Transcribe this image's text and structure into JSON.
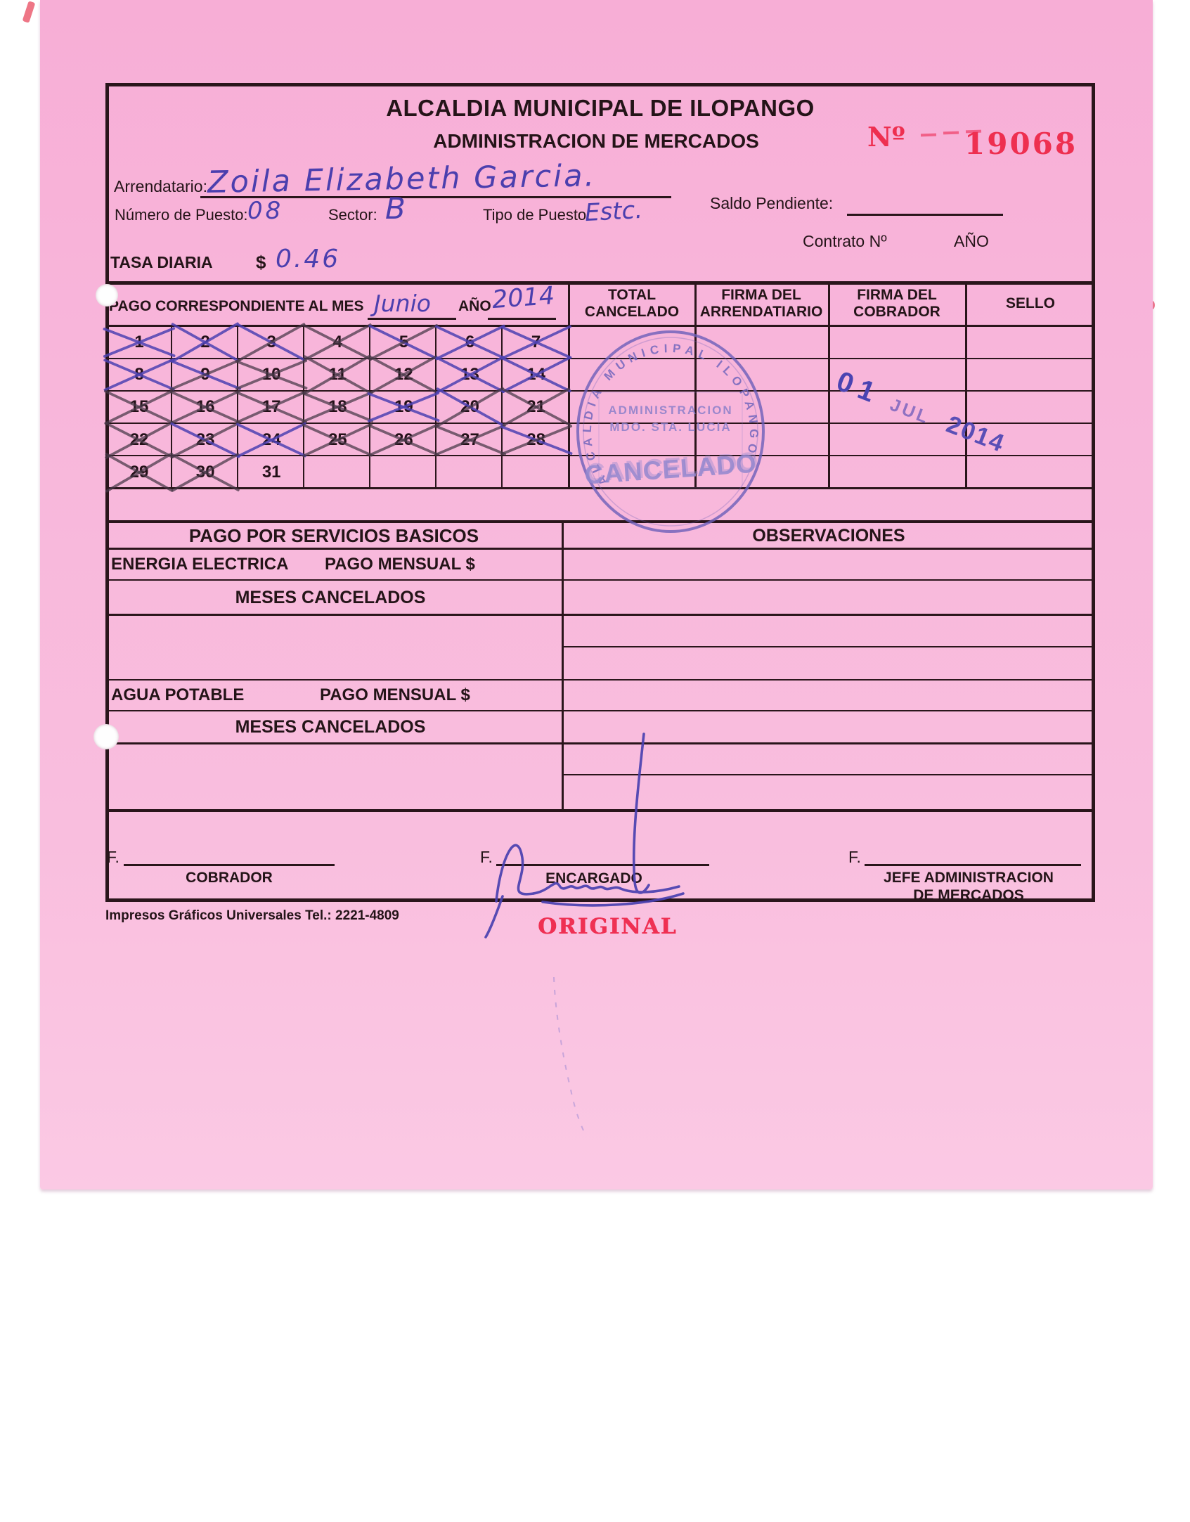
{
  "receipt": {
    "title": "ALCALDIA MUNICIPAL DE ILOPANGO",
    "subtitle": "ADMINISTRACION DE MERCADOS",
    "number_label": "Nº",
    "number": "19068",
    "fields": {
      "arrendatario_label": "Arrendatario:",
      "arrendatario_value": "Zoila Elizabeth Garcia.",
      "numero_puesto_label": "Número de Puesto:",
      "numero_puesto_value": "08",
      "sector_label": "Sector:",
      "sector_value": "B",
      "tipo_puesto_label": "Tipo de Puesto:",
      "tipo_puesto_value": "Estc.",
      "saldo_pendiente_label": "Saldo Pendiente:",
      "contrato_label": "Contrato Nº",
      "ano_label": "AÑO",
      "tasa_diaria_label": "TASA DIARIA",
      "tasa_currency": "$",
      "tasa_value": "0.46"
    },
    "payment": {
      "label": "PAGO CORRESPONDIENTE AL MES",
      "month_value": "Junio",
      "year_label": "AÑO",
      "year_value": "2014",
      "col_total": [
        "TOTAL",
        "CANCELADO"
      ],
      "col_arrendatario": [
        "FIRMA DEL",
        "ARRENDATIARIO"
      ],
      "col_cobrador": [
        "FIRMA DEL",
        "COBRADOR"
      ],
      "col_sello": "SELLO"
    },
    "calendar": {
      "days": [
        {
          "n": 1,
          "ink": "blue"
        },
        {
          "n": 2,
          "ink": "blue"
        },
        {
          "n": 3,
          "ink": "mixed"
        },
        {
          "n": 4,
          "ink": "dark"
        },
        {
          "n": 5,
          "ink": "mixed"
        },
        {
          "n": 6,
          "ink": "blue"
        },
        {
          "n": 7,
          "ink": "blue"
        },
        {
          "n": 8,
          "ink": "blue"
        },
        {
          "n": 9,
          "ink": "mixed"
        },
        {
          "n": 10,
          "ink": "dark"
        },
        {
          "n": 11,
          "ink": "dark"
        },
        {
          "n": 12,
          "ink": "dark"
        },
        {
          "n": 13,
          "ink": "blue"
        },
        {
          "n": 14,
          "ink": "blue"
        },
        {
          "n": 15,
          "ink": "dark"
        },
        {
          "n": 16,
          "ink": "dark"
        },
        {
          "n": 17,
          "ink": "dark"
        },
        {
          "n": 18,
          "ink": "dark"
        },
        {
          "n": 19,
          "ink": "blue"
        },
        {
          "n": 20,
          "ink": "mixed"
        },
        {
          "n": 21,
          "ink": "dark"
        },
        {
          "n": 22,
          "ink": "dark"
        },
        {
          "n": 23,
          "ink": "mixed"
        },
        {
          "n": 24,
          "ink": "blue"
        },
        {
          "n": 25,
          "ink": "dark"
        },
        {
          "n": 26,
          "ink": "dark"
        },
        {
          "n": 27,
          "ink": "dark"
        },
        {
          "n": 28,
          "ink": "mixed"
        },
        {
          "n": 29,
          "ink": "dark"
        },
        {
          "n": 30,
          "ink": "dark"
        },
        {
          "n": 31,
          "ink": null
        }
      ]
    },
    "seal": {
      "ring": "ALCALDIA MUNICIPAL ILOPANGO",
      "line1": "ADMINISTRACION",
      "line2": "MDO. STA. LUCIA",
      "cancel": "CANCELADO"
    },
    "date_stamp": {
      "day": "01",
      "month": "JUL",
      "year": "2014"
    },
    "services": {
      "header_left": "PAGO POR SERVICIOS BASICOS",
      "header_right": "OBSERVACIONES",
      "energia_label": "ENERGIA ELECTRICA",
      "pago_mensual_label": "PAGO MENSUAL $",
      "meses_label": "MESES CANCELADOS",
      "agua_label": "AGUA POTABLE"
    },
    "signatures": {
      "f_label": "F.",
      "cobrador": "COBRADOR",
      "encargado": "ENCARGADO",
      "jefe_line1": "JEFE ADMINISTRACION",
      "jefe_line2": "DE MERCADOS"
    },
    "footer": {
      "printer": "Impresos Gráficos Universales Tel.: 2221-4809",
      "copy_type": "ORIGINAL"
    },
    "colors": {
      "paper_pink": "#f8b5da",
      "grid_line": "#2a151b",
      "pen_ink_blue": "#4b3fae",
      "pencil_dark": "#463746",
      "stamp_purple": "#6c5fb9",
      "receipt_red": "#ee2f50"
    }
  }
}
